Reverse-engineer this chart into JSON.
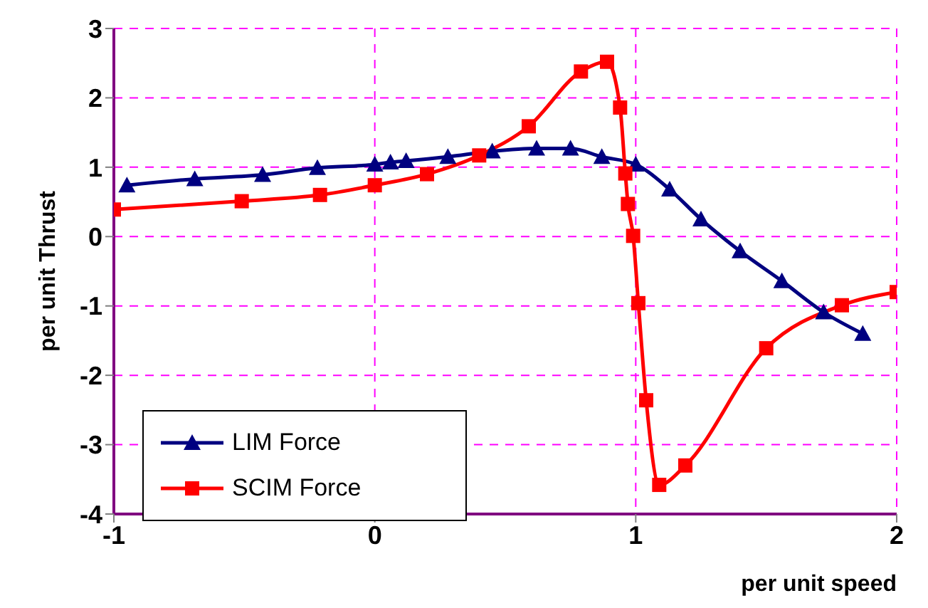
{
  "chart_data": {
    "type": "line",
    "xlabel": "per unit speed",
    "ylabel": "per unit Thrust",
    "xlim": [
      -1,
      2
    ],
    "xticks": [
      -1,
      0,
      1,
      2
    ],
    "ylim": [
      -4,
      3
    ],
    "yticks": [
      -4,
      -3,
      -2,
      -1,
      0,
      1,
      2,
      3
    ],
    "grid": true,
    "legend": "bottom left",
    "line_style": "solid",
    "series": [
      {
        "name": "LIM Force",
        "color": "#000080",
        "marker": "triangle",
        "x": [
          -0.95,
          -0.69,
          -0.43,
          -0.22,
          0,
          0.06,
          0.12,
          0.28,
          0.45,
          0.62,
          0.75,
          0.87,
          1,
          1.13,
          1.25,
          1.4,
          1.56,
          1.72,
          1.87
        ],
        "values": [
          0.74,
          0.83,
          0.89,
          0.99,
          1.04,
          1.07,
          1.09,
          1.15,
          1.23,
          1.27,
          1.27,
          1.15,
          1.04,
          0.68,
          0.25,
          -0.21,
          -0.64,
          -1.09,
          -1.4
        ]
      },
      {
        "name": "SCIM Force",
        "color": "#ff0000",
        "marker": "square",
        "x": [
          -1,
          -0.51,
          -0.21,
          0,
          0.2,
          0.4,
          0.59,
          0.79,
          0.89,
          0.94,
          0.96,
          0.97,
          0.99,
          1.01,
          1.04,
          1.09,
          1.19,
          1.5,
          1.79,
          2
        ],
        "values": [
          0.39,
          0.51,
          0.6,
          0.74,
          0.9,
          1.17,
          1.59,
          2.38,
          2.52,
          1.86,
          0.91,
          0.47,
          0.01,
          -0.96,
          -2.36,
          -3.58,
          -3.3,
          -1.61,
          -0.99,
          -0.8
        ]
      }
    ]
  }
}
